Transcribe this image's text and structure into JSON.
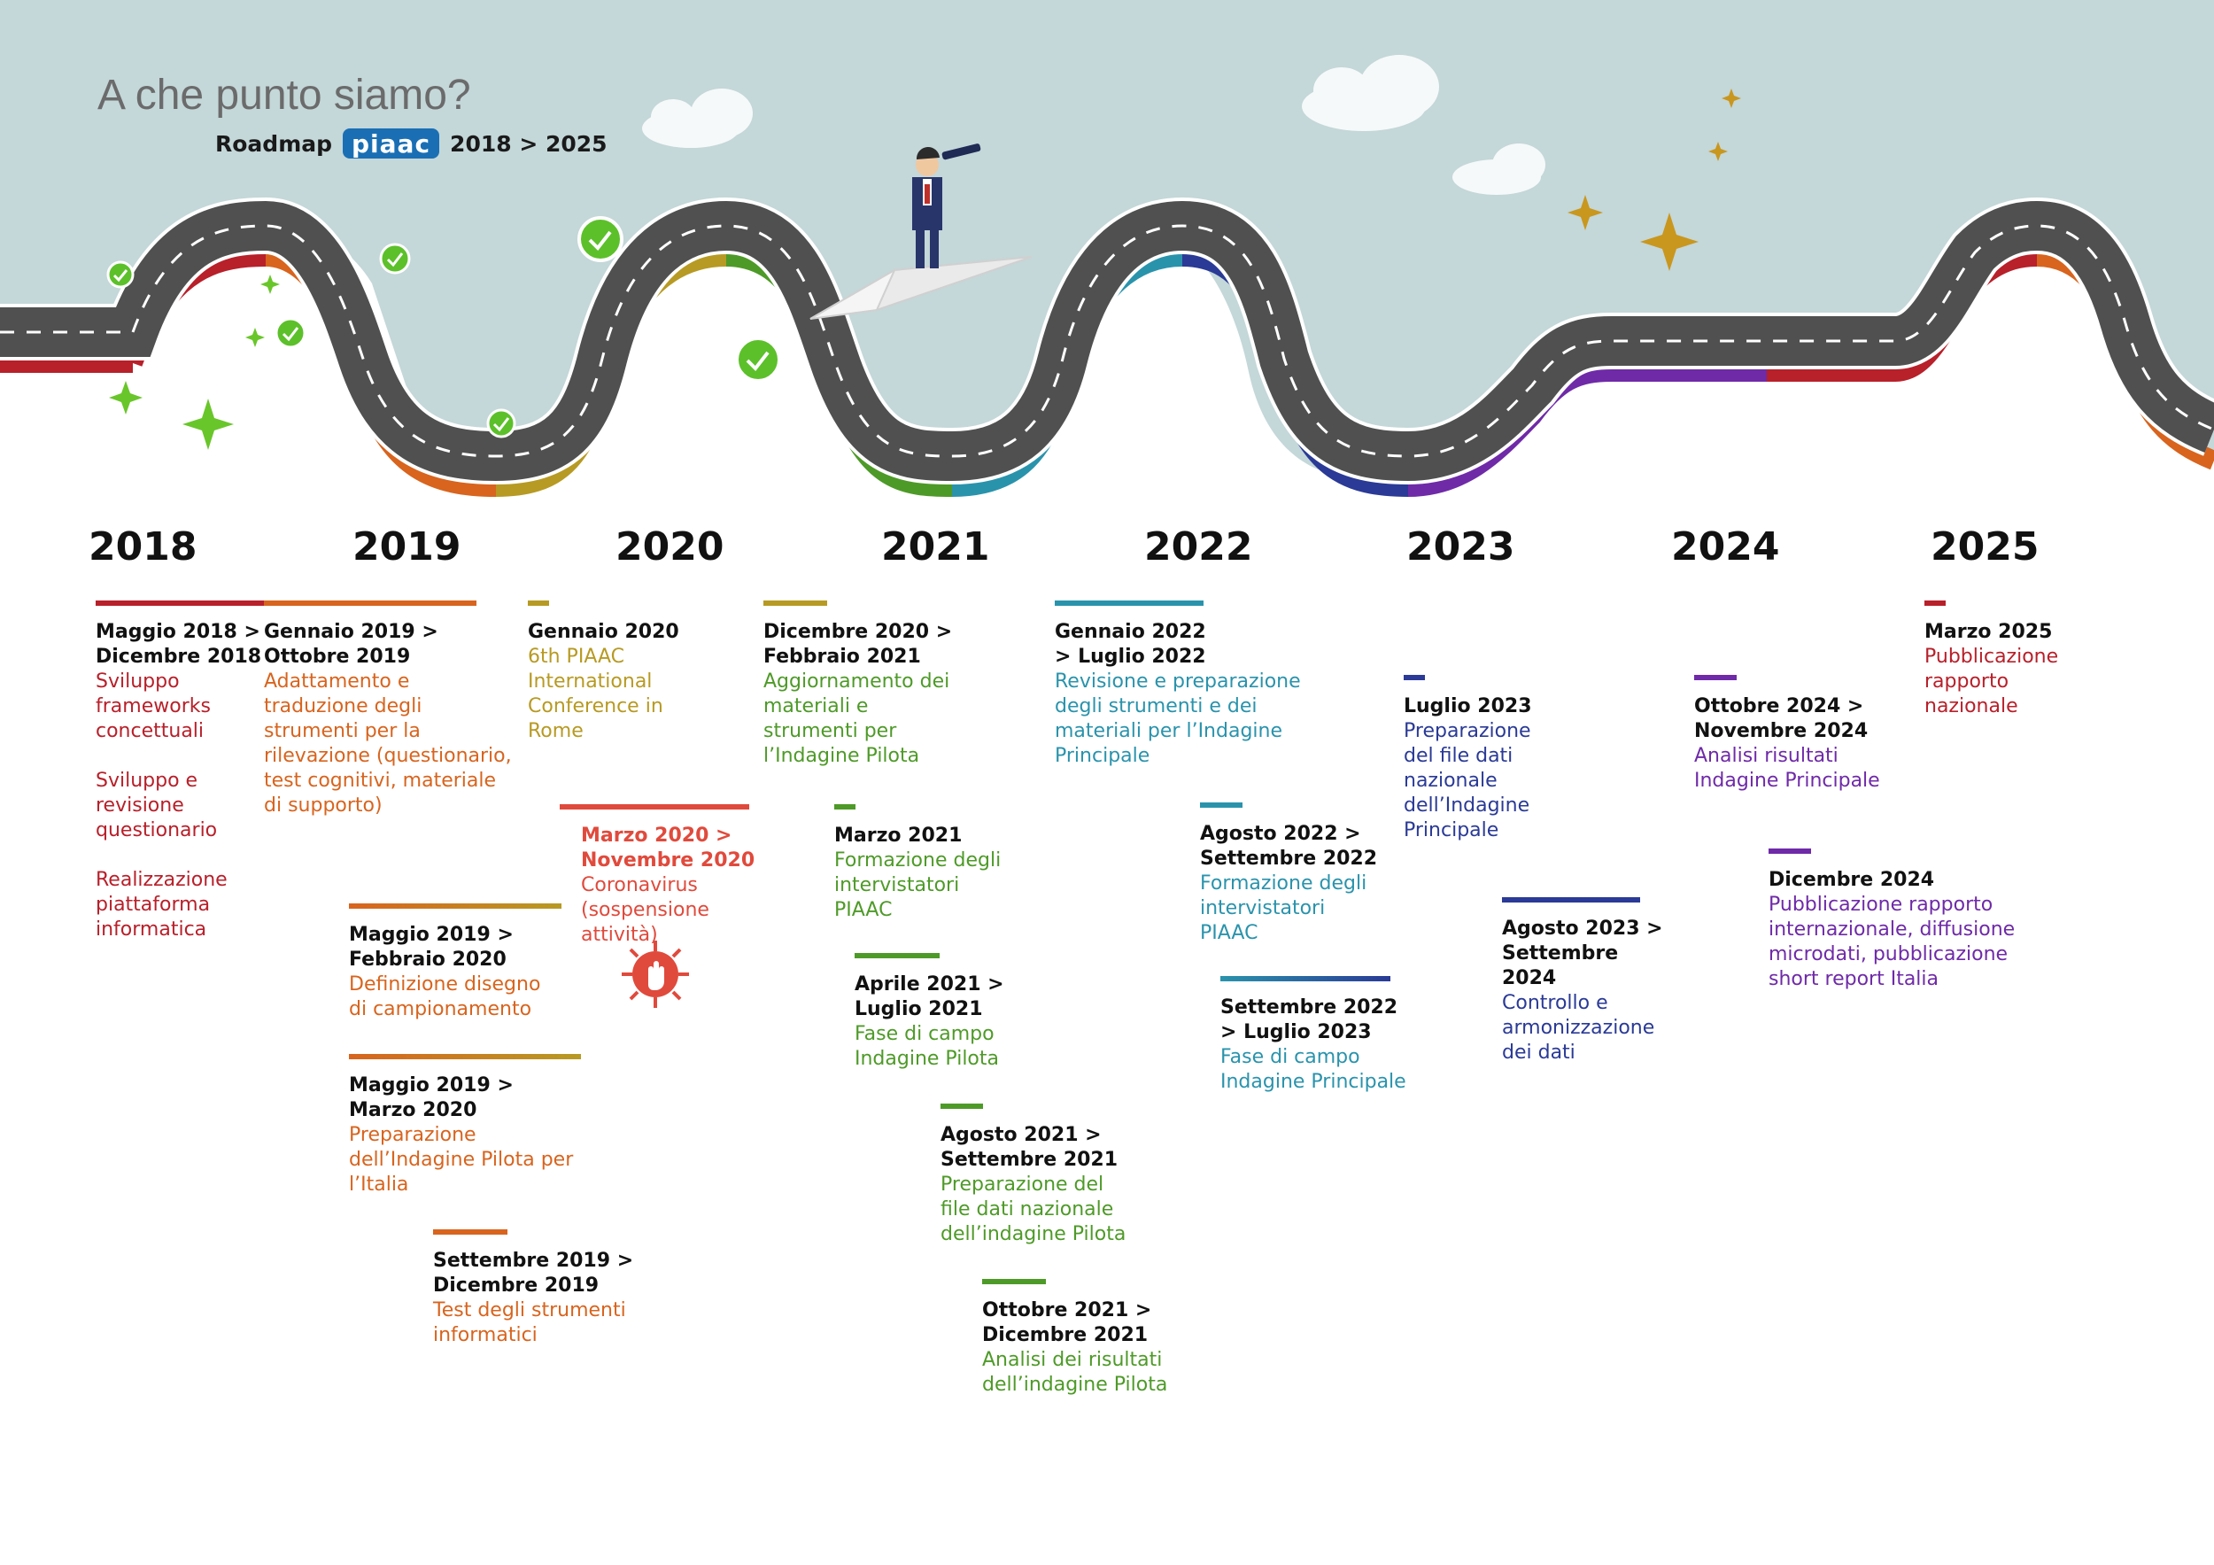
{
  "header": {
    "title": "A che punto siamo?",
    "roadmap_label": "Roadmap",
    "logo_text": "piaac",
    "range": "2018 > 2025"
  },
  "years": [
    "2018",
    "2019",
    "2020",
    "2021",
    "2022",
    "2023",
    "2024",
    "2025"
  ],
  "colors": {
    "red": "#b8202a",
    "orange": "#d8641e",
    "olive": "#b79a23",
    "green": "#4e9a28",
    "teal": "#2a93ac",
    "navy": "#2a3a96",
    "purple": "#6f2aa8",
    "corona": "#e04a3c",
    "sky": "#c4d7d9",
    "road": "#505050"
  },
  "milestones": [
    {
      "period": "Maggio 2018 > Dicembre 2018",
      "desc": "Sviluppo frameworks concettuali\n\nSviluppo e revisione questionario\n\nRealizzazione piattaforma informatica"
    },
    {
      "period": "Gennaio 2019 > Ottobre 2019",
      "desc": "Adattamento e traduzione degli strumenti per la rilevazione (questionario, test cognitivi, materiale di supporto)"
    },
    {
      "period": "Maggio 2019 > Febbraio 2020",
      "desc": "Definizione disegno di campionamento"
    },
    {
      "period": "Maggio 2019 > Marzo 2020",
      "desc": "Preparazione dell’Indagine Pilota per l’Italia"
    },
    {
      "period": "Settembre 2019 > Dicembre 2019",
      "desc": "Test degli strumenti informatici"
    },
    {
      "period": "Gennaio 2020",
      "desc": "6th PIAAC International Conference in Rome"
    },
    {
      "period": "Marzo 2020 > Novembre 2020",
      "desc": "Coronavirus (sospensione attività)"
    },
    {
      "period": "Dicembre 2020 > Febbraio 2021",
      "desc": "Aggiornamento dei materiali e strumenti per l’Indagine Pilota"
    },
    {
      "period": "Marzo 2021",
      "desc": "Formazione degli intervistatori PIAAC"
    },
    {
      "period": "Aprile 2021 > Luglio 2021",
      "desc": "Fase di campo Indagine Pilota"
    },
    {
      "period": "Agosto 2021 > Settembre 2021",
      "desc": "Preparazione del file dati nazionale dell’indagine Pilota"
    },
    {
      "period": "Ottobre 2021 > Dicembre 2021",
      "desc": "Analisi dei risultati dell’indagine Pilota"
    },
    {
      "period": "Gennaio 2022 > Luglio 2022",
      "desc": "Revisione e preparazione degli strumenti e dei materiali per l’Indagine Principale"
    },
    {
      "period": "Agosto 2022 > Settembre 2022",
      "desc": "Formazione degli intervistatori PIAAC"
    },
    {
      "period": "Settembre 2022 > Luglio 2023",
      "desc": "Fase di campo Indagine Principale"
    },
    {
      "period": "Luglio 2023",
      "desc": "Preparazione del file dati nazionale dell’Indagine Principale"
    },
    {
      "period": "Agosto 2023 > Settembre 2024",
      "desc": "Controllo e armonizzazione dei dati"
    },
    {
      "period": "Ottobre 2024 > Novembre 2024",
      "desc": "Analisi risultati Indagine Principale"
    },
    {
      "period": "Dicembre 2024",
      "desc": "Pubblicazione rapporto internazionale, diffusione microdati, pubblicazione short report Italia"
    },
    {
      "period": "Marzo 2025",
      "desc": "Pubblicazione rapporto nazionale"
    }
  ]
}
